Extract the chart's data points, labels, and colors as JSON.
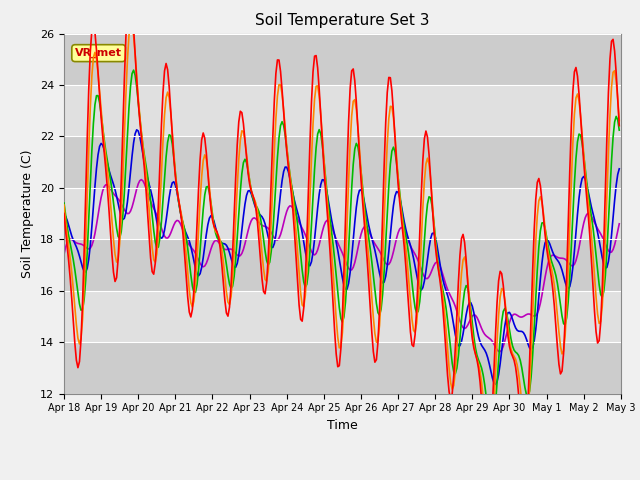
{
  "title": "Soil Temperature Set 3",
  "xlabel": "Time",
  "ylabel": "Soil Temperature (C)",
  "ylim": [
    12,
    26
  ],
  "yticks": [
    12,
    14,
    16,
    18,
    20,
    22,
    24,
    26
  ],
  "colors": {
    "Tsoil -2cm": "#ff0000",
    "Tsoil -4cm": "#ff8800",
    "Tsoil -8cm": "#00bb00",
    "Tsoil -16cm": "#0000dd",
    "Tsoil -32cm": "#bb00bb"
  },
  "tick_labels": [
    "Apr 18",
    "Apr 19",
    "Apr 20",
    "Apr 21",
    "Apr 22",
    "Apr 23",
    "Apr 24",
    "Apr 25",
    "Apr 26",
    "Apr 27",
    "Apr 28",
    "Apr 29",
    "Apr 30",
    "May 1",
    "May 2",
    "May 3"
  ],
  "annotation_text": "VR_met",
  "annotation_color": "#cc0000",
  "annotation_bg": "#ffff99",
  "annotation_border": "#888800",
  "fig_facecolor": "#f0f0f0",
  "ax_facecolor": "#e8e8e8",
  "band_color_dark": "#d8d8d8",
  "band_color_light": "#e8e8e8"
}
